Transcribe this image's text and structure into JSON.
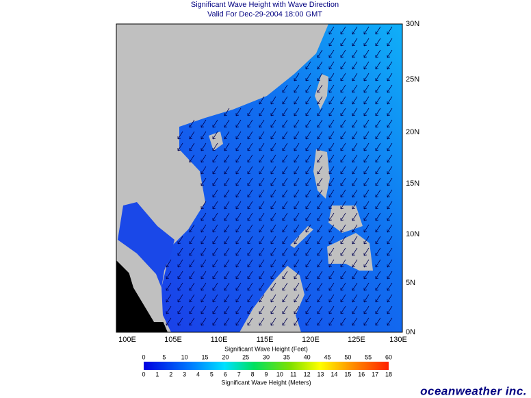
{
  "title": "Significant Wave Height with Wave Direction",
  "subtitle": "Valid For Dec-29-2004 18:00 GMT",
  "map": {
    "lon_labels": [
      "100E",
      "105E",
      "110E",
      "115E",
      "120E",
      "125E",
      "130E"
    ],
    "lat_labels": [
      "30N",
      "25N",
      "20N",
      "15N",
      "10N",
      "5N",
      "0N"
    ]
  },
  "colorbar": {
    "feet_title": "Significant Wave Height (Feet)",
    "feet_ticks": [
      0,
      5,
      10,
      15,
      20,
      25,
      30,
      35,
      40,
      45,
      50,
      55,
      60
    ],
    "meters_title": "Significant Wave Height (Meters)",
    "meters_ticks": [
      0,
      1,
      2,
      3,
      4,
      5,
      6,
      7,
      8,
      9,
      10,
      11,
      12,
      13,
      14,
      15,
      16,
      17,
      18
    ]
  },
  "logo": "oceanweather inc."
}
